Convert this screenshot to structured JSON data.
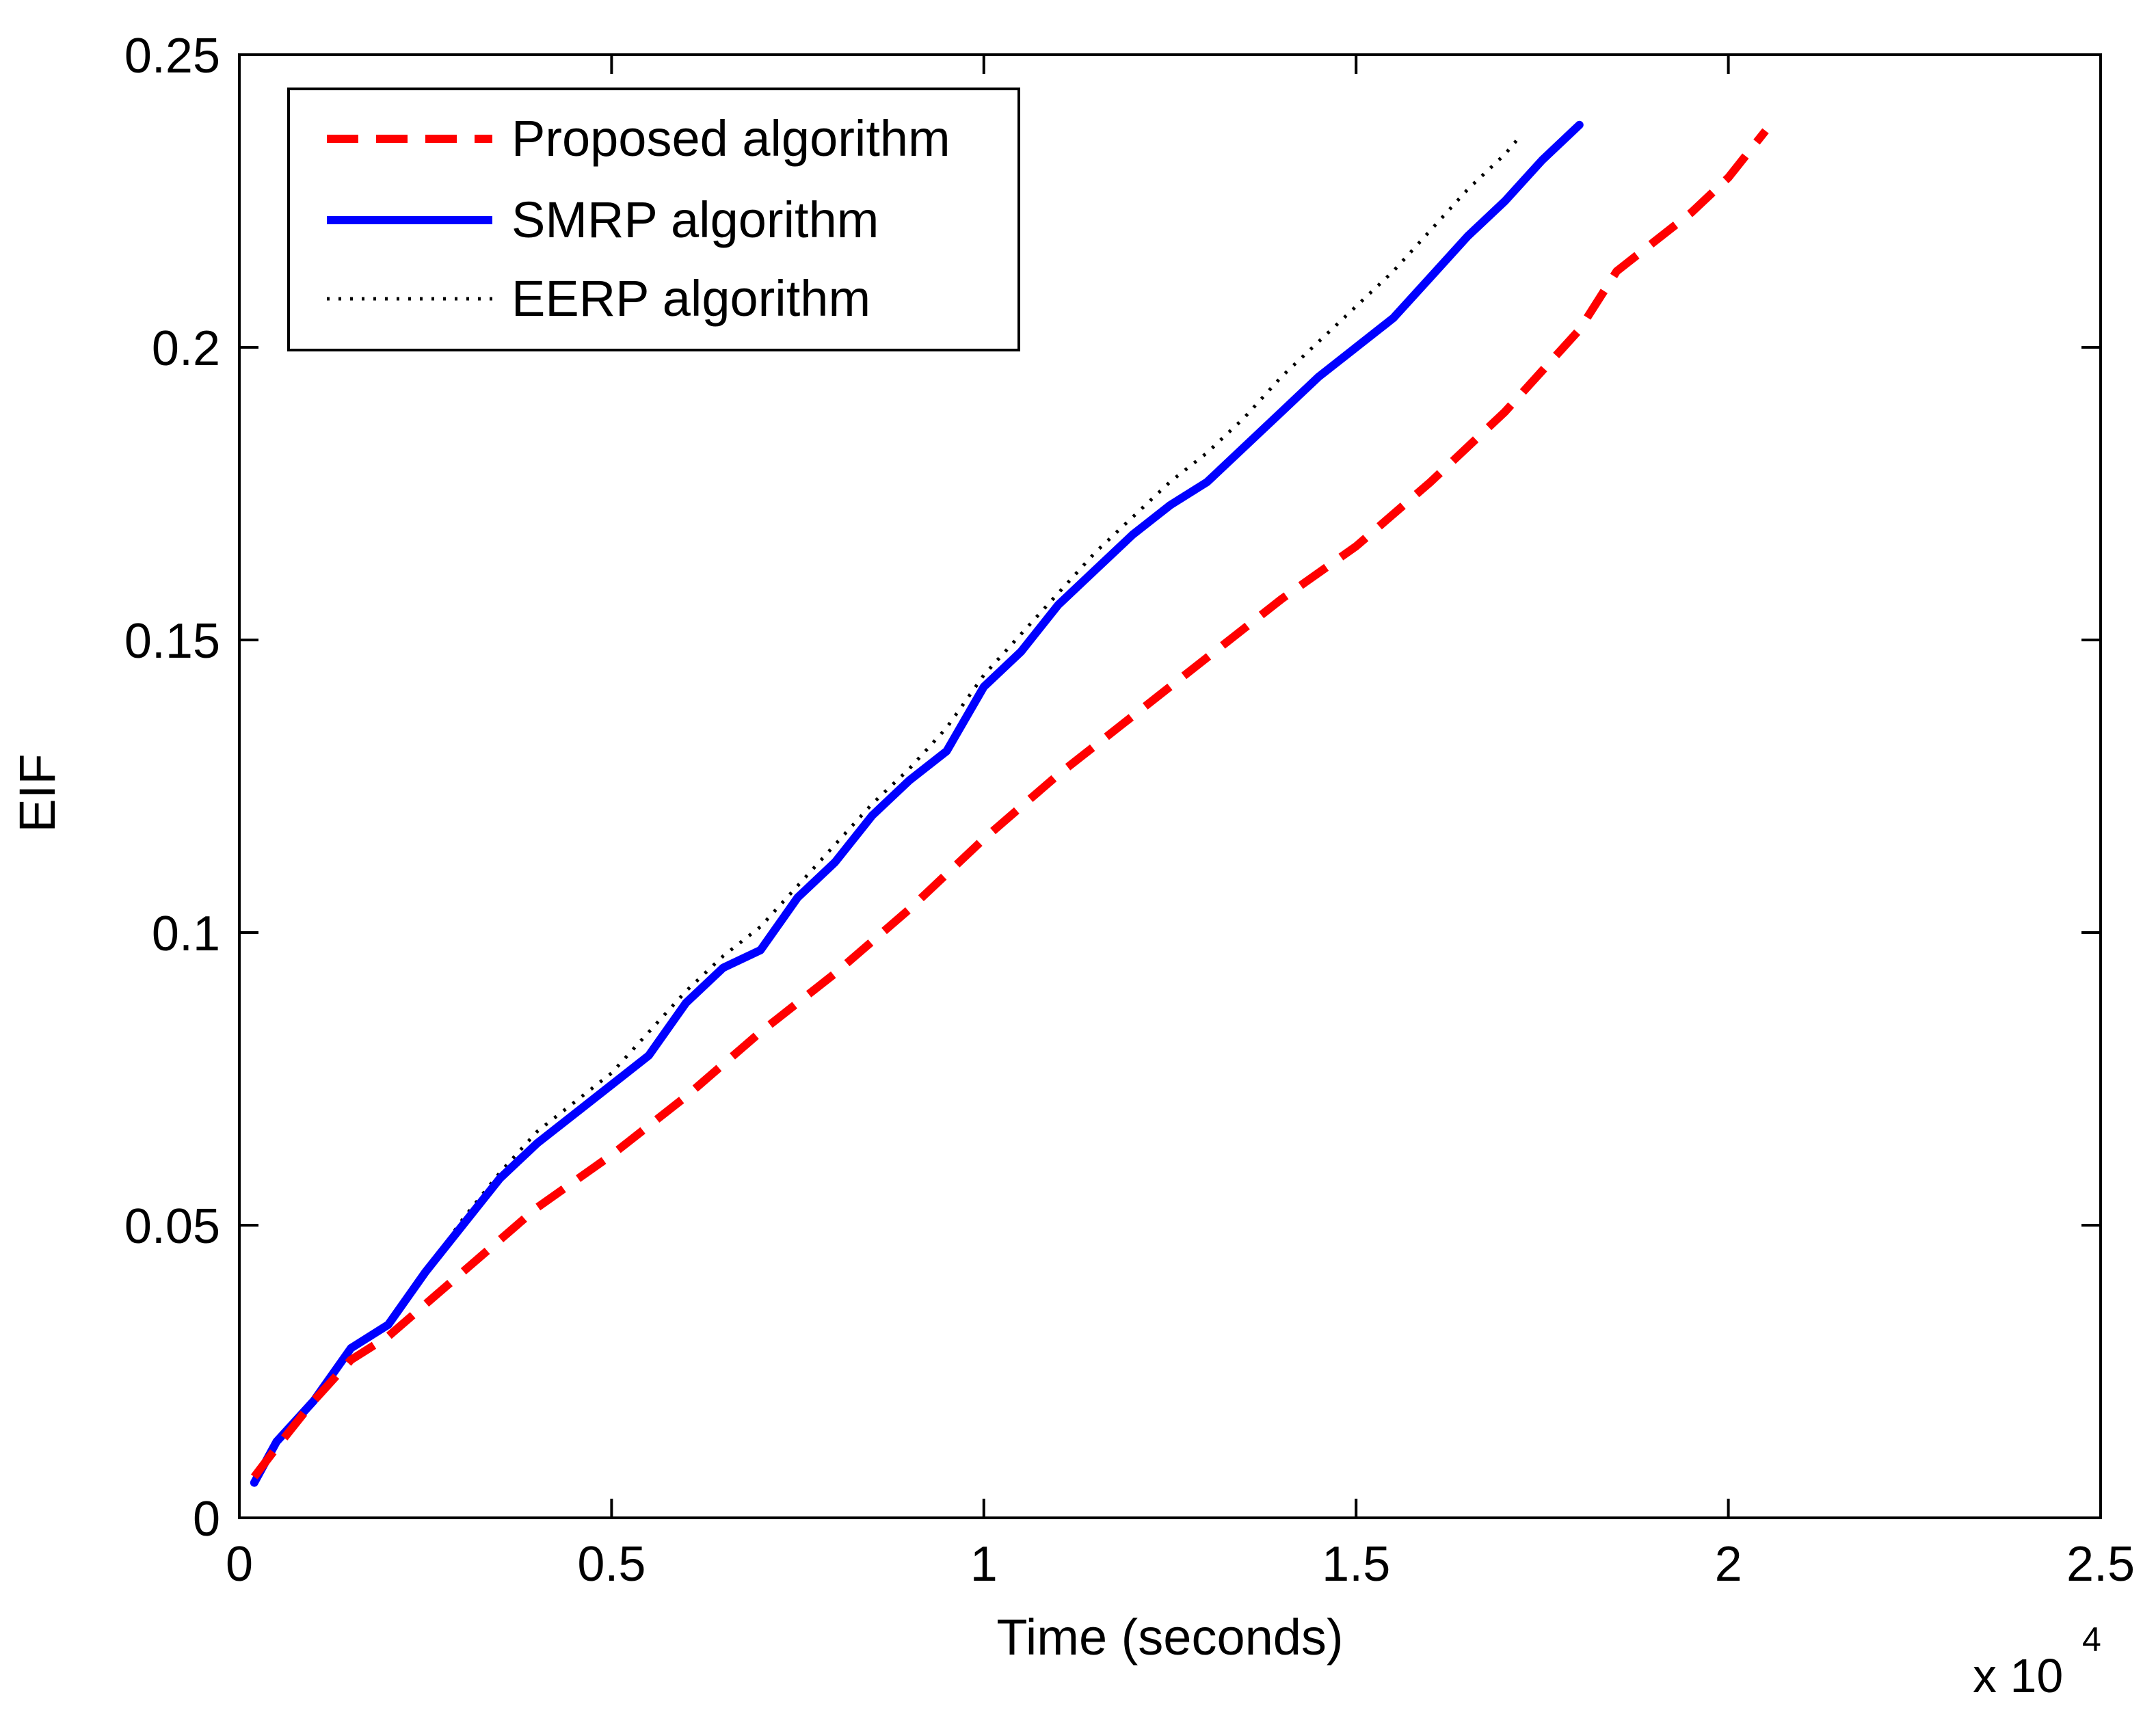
{
  "chart_data": {
    "type": "line",
    "title": "",
    "xlabel": "Time (seconds)",
    "ylabel": "EIF",
    "x_exponent_label": "x 10",
    "x_exponent_power": "4",
    "xlim": [
      0,
      2.5
    ],
    "ylim": [
      0,
      0.25
    ],
    "xticks": [
      0,
      0.5,
      1,
      1.5,
      2,
      2.5
    ],
    "xtick_labels": [
      "0",
      "0.5",
      "1",
      "1.5",
      "2",
      "2.5"
    ],
    "yticks": [
      0,
      0.05,
      0.1,
      0.15,
      0.2,
      0.25
    ],
    "ytick_labels": [
      "0",
      "0.05",
      "0.1",
      "0.15",
      "0.2",
      "0.25"
    ],
    "grid": false,
    "legend_position": "top-left",
    "series": [
      {
        "name": "Proposed algorithm",
        "color": "#ff0000",
        "style": "dashed",
        "x": [
          0.02,
          0.05,
          0.1,
          0.15,
          0.2,
          0.3,
          0.4,
          0.5,
          0.6,
          0.7,
          0.8,
          0.9,
          1.0,
          1.1,
          1.2,
          1.3,
          1.4,
          1.5,
          1.6,
          1.7,
          1.8,
          1.85,
          1.9,
          1.95,
          2.0,
          2.05
        ],
        "y": [
          0.007,
          0.012,
          0.02,
          0.027,
          0.031,
          0.042,
          0.053,
          0.062,
          0.072,
          0.083,
          0.093,
          0.104,
          0.116,
          0.127,
          0.137,
          0.147,
          0.157,
          0.166,
          0.177,
          0.189,
          0.203,
          0.213,
          0.218,
          0.223,
          0.229,
          0.237
        ]
      },
      {
        "name": "SMRP algorithm",
        "color": "#0000ff",
        "style": "solid",
        "x": [
          0.02,
          0.05,
          0.1,
          0.15,
          0.2,
          0.25,
          0.3,
          0.35,
          0.4,
          0.45,
          0.5,
          0.55,
          0.6,
          0.65,
          0.7,
          0.75,
          0.8,
          0.85,
          0.9,
          0.95,
          1.0,
          1.05,
          1.1,
          1.15,
          1.2,
          1.25,
          1.3,
          1.35,
          1.4,
          1.45,
          1.5,
          1.55,
          1.6,
          1.65,
          1.7,
          1.75,
          1.8
        ],
        "y": [
          0.006,
          0.013,
          0.02,
          0.029,
          0.033,
          0.042,
          0.05,
          0.058,
          0.064,
          0.069,
          0.074,
          0.079,
          0.088,
          0.094,
          0.097,
          0.106,
          0.112,
          0.12,
          0.126,
          0.131,
          0.142,
          0.148,
          0.156,
          0.162,
          0.168,
          0.173,
          0.177,
          0.183,
          0.189,
          0.195,
          0.2,
          0.205,
          0.212,
          0.219,
          0.225,
          0.232,
          0.238
        ]
      },
      {
        "name": "EERP algorithm",
        "color": "#000000",
        "style": "dotted",
        "x": [
          0.02,
          0.05,
          0.1,
          0.15,
          0.2,
          0.25,
          0.3,
          0.35,
          0.4,
          0.45,
          0.5,
          0.55,
          0.6,
          0.65,
          0.7,
          0.75,
          0.8,
          0.85,
          0.9,
          0.95,
          1.0,
          1.05,
          1.1,
          1.15,
          1.2,
          1.25,
          1.3,
          1.35,
          1.4,
          1.45,
          1.5,
          1.55,
          1.6,
          1.65,
          1.7,
          1.72
        ],
        "y": [
          0.006,
          0.013,
          0.02,
          0.029,
          0.033,
          0.042,
          0.051,
          0.059,
          0.066,
          0.071,
          0.076,
          0.083,
          0.09,
          0.096,
          0.101,
          0.108,
          0.115,
          0.122,
          0.128,
          0.135,
          0.144,
          0.151,
          0.158,
          0.165,
          0.171,
          0.177,
          0.182,
          0.188,
          0.195,
          0.201,
          0.207,
          0.213,
          0.22,
          0.227,
          0.233,
          0.236
        ]
      }
    ]
  }
}
